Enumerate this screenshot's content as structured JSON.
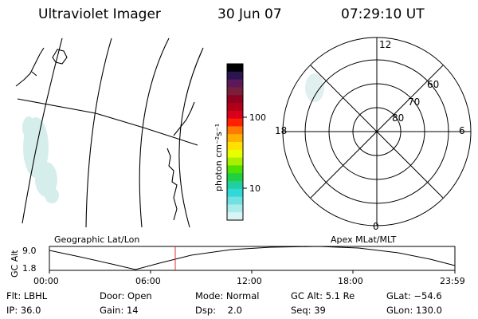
{
  "header": {
    "title": "Ultraviolet Imager",
    "date": "30 Jun 07",
    "time": "07:29:10 UT"
  },
  "colorbar": {
    "label": "photon cm⁻²s⁻¹",
    "ticks": [
      "100",
      "10"
    ],
    "colors": [
      "#000000",
      "#2a1550",
      "#5a1a5a",
      "#7a1f3a",
      "#900020",
      "#b00018",
      "#d8001a",
      "#ff2000",
      "#ff7a00",
      "#ffb000",
      "#ffe000",
      "#e8ff00",
      "#a8f000",
      "#50e000",
      "#20d040",
      "#20d0a0",
      "#30d8d8",
      "#70e0e0",
      "#a8ecec",
      "#d8f4f4"
    ]
  },
  "polar": {
    "labels": {
      "top": "12",
      "bottom": "0",
      "left": "18",
      "right": "6"
    },
    "lat_labels": [
      "60",
      "70",
      "80"
    ]
  },
  "map": {
    "left_label": "Geographic Lat/Lon",
    "right_label": "Apex MLat/MLT"
  },
  "alt_plot": {
    "ylabel": "GC Alt",
    "y_ticks": [
      "9.0",
      "1.8"
    ],
    "x_ticks": [
      "00:00",
      "06:00",
      "12:00",
      "18:00",
      "23:59"
    ],
    "marker_color": "#e03030"
  },
  "info": {
    "row1": [
      "Flt: LBHL",
      "Door: Open",
      "Mode: Normal",
      "GC Alt: 5.1 Re",
      "GLat: −54.6"
    ],
    "row2": [
      "IP: 36.0",
      "Gain: 14",
      "Dsp:    2.0",
      "Seq: 39",
      "GLon: 130.0"
    ]
  }
}
